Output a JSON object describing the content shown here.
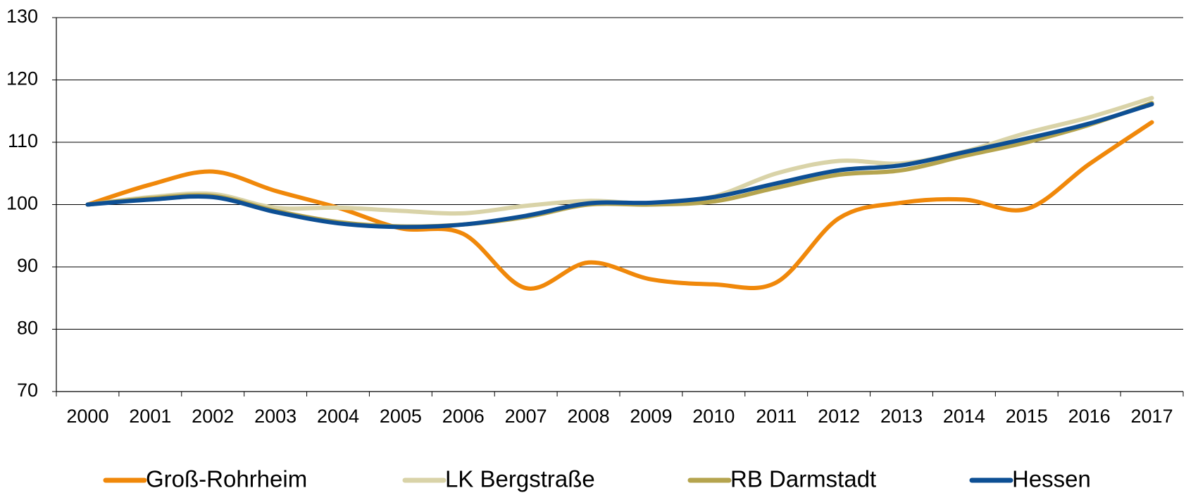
{
  "chart_data": {
    "type": "line",
    "categories": [
      "2000",
      "2001",
      "2002",
      "2003",
      "2004",
      "2005",
      "2006",
      "2007",
      "2008",
      "2009",
      "2010",
      "2011",
      "2012",
      "2013",
      "2014",
      "2015",
      "2016",
      "2017"
    ],
    "series": [
      {
        "name": "Groß-Rohrheim",
        "color": "#f0880a",
        "values": [
          100,
          103.2,
          105.3,
          102.2,
          99.5,
          96.2,
          95.3,
          86.6,
          90.7,
          88.0,
          87.2,
          87.5,
          97.8,
          100.3,
          100.8,
          99.3,
          106.5,
          113.2
        ]
      },
      {
        "name": "LK Bergstraße",
        "color": "#d9d3a8",
        "values": [
          100,
          101.2,
          101.7,
          99.5,
          99.5,
          99.0,
          98.6,
          99.8,
          100.6,
          100.2,
          101.3,
          105.0,
          107.0,
          106.6,
          108.5,
          111.5,
          114.0,
          117.1
        ]
      },
      {
        "name": "RB Darmstadt",
        "color": "#b5a44e",
        "values": [
          100,
          101.0,
          101.4,
          99.0,
          97.2,
          96.5,
          96.8,
          98.0,
          100.0,
          100.0,
          100.5,
          102.7,
          104.8,
          105.5,
          107.8,
          110.0,
          112.8,
          116.3
        ]
      },
      {
        "name": "Hessen",
        "color": "#0d4f94",
        "values": [
          100,
          100.8,
          101.2,
          98.8,
          97.0,
          96.4,
          96.8,
          98.2,
          100.2,
          100.3,
          101.2,
          103.4,
          105.5,
          106.3,
          108.4,
          110.6,
          113.0,
          116.1
        ]
      }
    ],
    "ylim": [
      70,
      130
    ],
    "yticks": [
      70,
      80,
      90,
      100,
      110,
      120,
      130
    ],
    "grid": true,
    "legend": "bottom"
  }
}
